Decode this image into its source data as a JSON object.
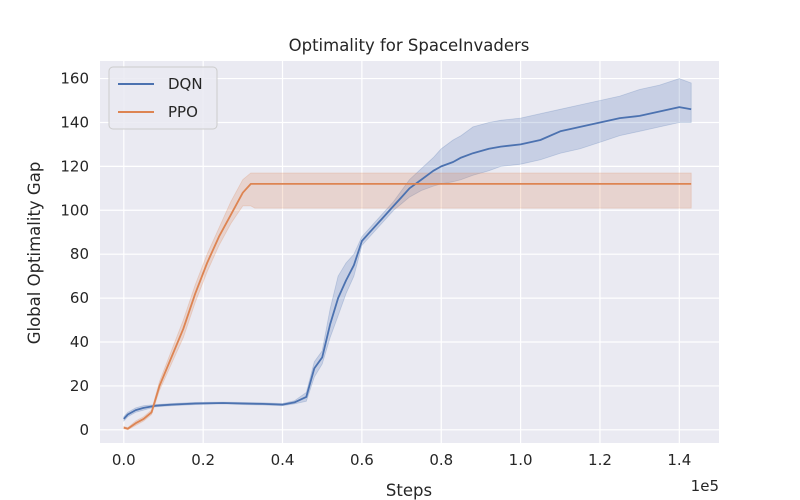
{
  "chart_data": {
    "type": "line",
    "title": "Optimality for SpaceInvaders",
    "xlabel": "Steps",
    "ylabel": "Global Optimality Gap",
    "x_multiplier_label": "1e5",
    "xlim": [
      -0.06,
      1.5
    ],
    "ylim": [
      -6,
      168
    ],
    "xticks": [
      0.0,
      0.2,
      0.4,
      0.6,
      0.8,
      1.0,
      1.2,
      1.4
    ],
    "xtick_labels": [
      "0.0",
      "0.2",
      "0.4",
      "0.6",
      "0.8",
      "1.0",
      "1.2",
      "1.4"
    ],
    "yticks": [
      0,
      20,
      40,
      60,
      80,
      100,
      120,
      140,
      160
    ],
    "ytick_labels": [
      "0",
      "20",
      "40",
      "60",
      "80",
      "100",
      "120",
      "140",
      "160"
    ],
    "grid": true,
    "legend_position": "top-left",
    "colors": {
      "background": "#eaeaf2",
      "grid": "#ffffff",
      "DQN": "#4c72b0",
      "PPO": "#dd8452"
    },
    "series": [
      {
        "name": "DQN",
        "x": [
          0.0,
          0.01,
          0.03,
          0.05,
          0.08,
          0.12,
          0.18,
          0.25,
          0.3,
          0.35,
          0.4,
          0.43,
          0.46,
          0.48,
          0.5,
          0.52,
          0.54,
          0.56,
          0.58,
          0.6,
          0.62,
          0.65,
          0.68,
          0.7,
          0.72,
          0.75,
          0.78,
          0.8,
          0.83,
          0.85,
          0.88,
          0.92,
          0.95,
          1.0,
          1.05,
          1.1,
          1.15,
          1.2,
          1.25,
          1.3,
          1.35,
          1.4,
          1.43
        ],
        "y": [
          5,
          7,
          9,
          10,
          11,
          11.5,
          12,
          12.2,
          12,
          11.8,
          11.5,
          12.5,
          15,
          28,
          33,
          48,
          60,
          68,
          75,
          86,
          90,
          96,
          102,
          106,
          110,
          114,
          118,
          120,
          122,
          124,
          126,
          128,
          129,
          130,
          132,
          136,
          138,
          140,
          142,
          143,
          145,
          147,
          146
        ],
        "lower": [
          4,
          6,
          8,
          9,
          10.5,
          11,
          11.5,
          11.8,
          11.5,
          11.3,
          11,
          11.8,
          13,
          24,
          30,
          42,
          52,
          62,
          70,
          84,
          88,
          94,
          100,
          103,
          106,
          109,
          111,
          112,
          113,
          114,
          116,
          118,
          120,
          121,
          123,
          126,
          128,
          131,
          134,
          136,
          138,
          140,
          140
        ],
        "upper": [
          6,
          8,
          10,
          11,
          11.5,
          12,
          12.5,
          12.6,
          12.5,
          12.3,
          12,
          13.2,
          17,
          31,
          36,
          55,
          70,
          76,
          80,
          88,
          92,
          98,
          104,
          109,
          114,
          119,
          124,
          128,
          132,
          134,
          138,
          140,
          141,
          142,
          144,
          146,
          148,
          150,
          152,
          155,
          157,
          160,
          158
        ]
      },
      {
        "name": "PPO",
        "x": [
          0.0,
          0.01,
          0.03,
          0.05,
          0.07,
          0.09,
          0.12,
          0.15,
          0.18,
          0.21,
          0.24,
          0.27,
          0.3,
          0.32,
          0.33,
          0.4,
          0.6,
          0.8,
          1.0,
          1.2,
          1.43
        ],
        "y": [
          1,
          0.5,
          3,
          5,
          8,
          20,
          33,
          46,
          62,
          76,
          88,
          98,
          108,
          112,
          112,
          112,
          112,
          112,
          112,
          112,
          112
        ],
        "lower": [
          0.5,
          0,
          2,
          4,
          7,
          18,
          30,
          42,
          58,
          72,
          84,
          94,
          102,
          102,
          101,
          101,
          101,
          101,
          101,
          101,
          101
        ],
        "upper": [
          1.5,
          1,
          4,
          6,
          9,
          22,
          36,
          50,
          66,
          80,
          92,
          104,
          114,
          117,
          117,
          117,
          117,
          117,
          117,
          117,
          117
        ]
      }
    ]
  }
}
